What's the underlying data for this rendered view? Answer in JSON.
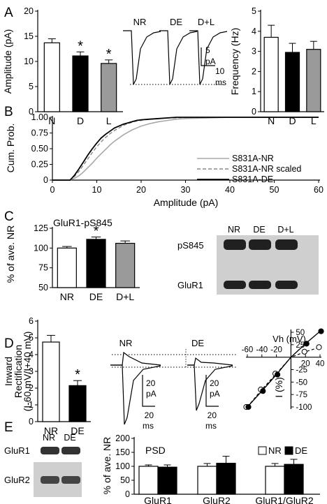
{
  "panel_letters": [
    "A",
    "B",
    "C",
    "D",
    "E"
  ],
  "colors": {
    "white": "#ffffff",
    "black": "#000000",
    "gray": "#9a9a9a",
    "cdf_gray": "#a8a8a8",
    "blot_bg": "#cfcfcf",
    "blot_band": "#202020"
  },
  "chart_data": [
    {
      "id": "A_amplitude",
      "type": "bar",
      "ylabel": "Amplitude (pA)",
      "ylim": [
        0,
        20
      ],
      "yticks": [
        0,
        5,
        10,
        15,
        20
      ],
      "categories": [
        "N",
        "D",
        "L"
      ],
      "values": [
        13.7,
        11.1,
        9.6
      ],
      "errors": [
        0.8,
        0.8,
        0.7
      ],
      "fills": [
        "white",
        "black",
        "gray"
      ],
      "significance": [
        "",
        "*",
        "*"
      ]
    },
    {
      "id": "A_traces",
      "type": "line",
      "trace_labels": [
        "NR",
        "DE",
        "D+L"
      ],
      "scale_bar": {
        "y_value": "5",
        "y_unit": "pA",
        "x_value": "10",
        "x_unit": "ms"
      }
    },
    {
      "id": "A_frequency",
      "type": "bar",
      "ylabel": "Frequency (Hz)",
      "ylim": [
        0,
        5
      ],
      "yticks": [
        0,
        1,
        2,
        3,
        4,
        5
      ],
      "categories": [
        "N",
        "D",
        "L"
      ],
      "values": [
        3.7,
        2.95,
        3.1
      ],
      "errors": [
        0.6,
        0.45,
        0.4
      ],
      "fills": [
        "white",
        "black",
        "gray"
      ]
    },
    {
      "id": "B_cumulative",
      "type": "line",
      "xlabel": "Amplitude (pA)",
      "ylabel": "Cum. Prob.",
      "xlim": [
        0,
        60
      ],
      "ylim": [
        0,
        1
      ],
      "xticks": [
        0,
        10,
        20,
        30,
        40,
        50,
        60
      ],
      "yticks": [
        "0",
        "0.25",
        "0.50",
        "0.75",
        "1.00"
      ],
      "legend_position": "right",
      "series": [
        {
          "name": "S831A-NR",
          "style": "solid-gray",
          "x": [
            0,
            4,
            5,
            6,
            7,
            8,
            9,
            10,
            11,
            12,
            13,
            14,
            15,
            16,
            17,
            18,
            19,
            20,
            22,
            24,
            26,
            28,
            30,
            35,
            40,
            50,
            60
          ],
          "y": [
            0,
            0,
            0.03,
            0.07,
            0.13,
            0.2,
            0.27,
            0.35,
            0.42,
            0.49,
            0.56,
            0.62,
            0.67,
            0.72,
            0.76,
            0.8,
            0.83,
            0.86,
            0.9,
            0.93,
            0.95,
            0.97,
            0.98,
            0.99,
            1,
            1,
            1
          ]
        },
        {
          "name": "S831A-NR scaled",
          "style": "dashed-gray",
          "x": [
            0,
            4,
            5,
            6,
            7,
            8,
            9,
            10,
            11,
            12,
            13,
            14,
            15,
            16,
            17,
            18,
            19,
            20,
            22,
            24,
            26,
            28,
            30,
            35,
            40,
            50,
            60
          ],
          "y": [
            0,
            0,
            0.06,
            0.14,
            0.24,
            0.34,
            0.44,
            0.53,
            0.61,
            0.68,
            0.74,
            0.79,
            0.83,
            0.87,
            0.9,
            0.92,
            0.94,
            0.95,
            0.97,
            0.98,
            0.99,
            0.99,
            1,
            1,
            1,
            1,
            1
          ]
        },
        {
          "name": "S831A-DE",
          "style": "solid-black",
          "x": [
            0,
            4,
            5,
            6,
            7,
            8,
            9,
            10,
            11,
            12,
            13,
            14,
            15,
            16,
            17,
            18,
            19,
            20,
            22,
            24,
            26,
            28,
            30,
            35,
            40,
            50,
            60
          ],
          "y": [
            0,
            0,
            0.08,
            0.18,
            0.29,
            0.4,
            0.5,
            0.59,
            0.67,
            0.73,
            0.78,
            0.83,
            0.86,
            0.89,
            0.91,
            0.93,
            0.95,
            0.96,
            0.97,
            0.98,
            0.99,
            1,
            1,
            1,
            1,
            1,
            1
          ]
        }
      ]
    },
    {
      "id": "C_pS845",
      "type": "bar",
      "title": "GluR1-pS845",
      "ylabel": "% of ave. NR",
      "ylim": [
        50,
        125
      ],
      "yticks": [
        50,
        75,
        100,
        125
      ],
      "categories": [
        "NR",
        "DE",
        "D+L"
      ],
      "values": [
        100,
        111,
        106
      ],
      "errors": [
        2,
        3,
        3
      ],
      "fills": [
        "white",
        "black",
        "gray"
      ],
      "significance": [
        "",
        "*",
        ""
      ]
    },
    {
      "id": "C_blot",
      "type": "table",
      "lane_labels": [
        "NR",
        "DE",
        "D+L"
      ],
      "row_labels": [
        "pS845",
        "GluR1"
      ]
    },
    {
      "id": "D_rectification",
      "type": "bar",
      "ylabel_main": "Inward",
      "ylabel_second": "Rectification",
      "ylabel_ratio": "(I-60 mV/I+40 mV)",
      "ylim": [
        0,
        6
      ],
      "yticks": [
        0,
        1,
        2,
        3,
        4,
        5,
        6
      ],
      "categories": [
        "NR",
        "DE"
      ],
      "values": [
        4.75,
        2.15
      ],
      "errors": [
        0.4,
        0.3
      ],
      "fills": [
        "white",
        "black"
      ],
      "significance": [
        "",
        "*"
      ]
    },
    {
      "id": "D_traces",
      "type": "line",
      "trace_labels": [
        "NR",
        "DE"
      ],
      "scale_bar": {
        "y_value": "20",
        "y_unit": "pA",
        "x_value": "20",
        "x_unit": "ms"
      }
    },
    {
      "id": "D_iv",
      "type": "scatter",
      "xlabel": "Vh (mV)",
      "ylabel": "I (%)",
      "xlim": [
        -60,
        40
      ],
      "ylim": [
        -100,
        50
      ],
      "xticks": [
        "-60",
        "-40",
        "-20",
        "20",
        "40"
      ],
      "yticks": [
        "50",
        "25",
        "-25",
        "-50",
        "-75",
        "-100"
      ],
      "series": [
        {
          "name": "NR",
          "marker": "open",
          "x": [
            -60,
            -40,
            -20,
            0,
            20,
            40
          ],
          "y": [
            -100,
            -65,
            -33,
            0,
            11,
            20
          ]
        },
        {
          "name": "DE",
          "marker": "filled",
          "x": [
            -60,
            -40,
            -20,
            0,
            20,
            40
          ],
          "y": [
            -100,
            -68,
            -35,
            0,
            27,
            52
          ]
        }
      ]
    },
    {
      "id": "E_blot",
      "type": "table",
      "lane_labels": [
        "NR",
        "DE"
      ],
      "row_labels": [
        "GluR1",
        "GluR2"
      ]
    },
    {
      "id": "E_psd",
      "type": "bar",
      "title": "PSD",
      "ylabel": "% of ave. NR",
      "ylim": [
        0,
        200
      ],
      "yticks": [
        0,
        50,
        100,
        150,
        200
      ],
      "categories": [
        "GluR1",
        "GluR2",
        "GluR1/GluR2"
      ],
      "series": [
        {
          "name": "NR",
          "fill": "white",
          "values": [
            100,
            100,
            100
          ],
          "errors": [
            5,
            10,
            10
          ]
        },
        {
          "name": "DE",
          "fill": "black",
          "values": [
            97,
            111,
            107
          ],
          "errors": [
            8,
            25,
            18
          ]
        }
      ],
      "legend_position": "top-right"
    }
  ]
}
